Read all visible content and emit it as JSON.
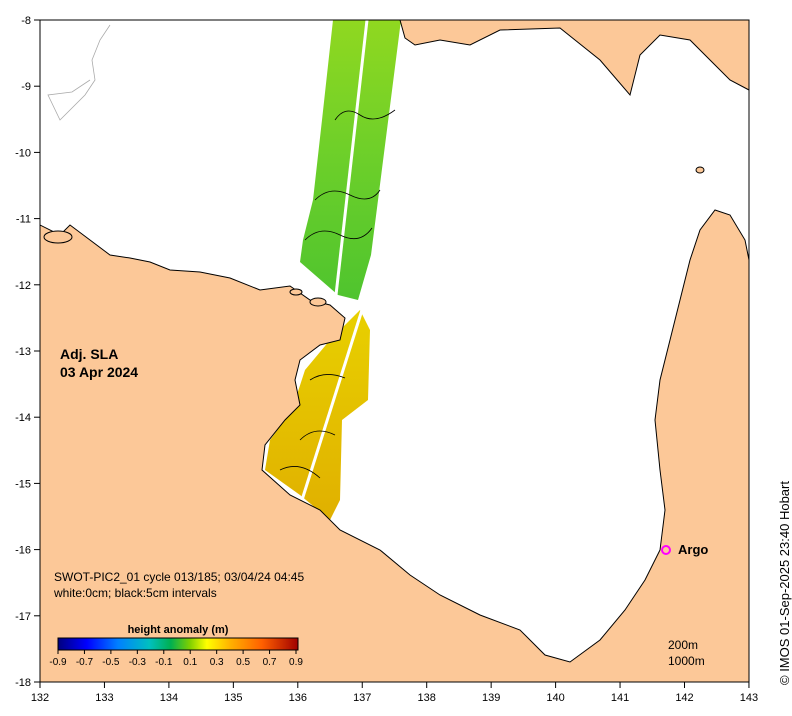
{
  "map": {
    "lon_ticks": [
      "132",
      "133",
      "134",
      "135",
      "136",
      "137",
      "138",
      "139",
      "140",
      "141",
      "142",
      "143"
    ],
    "lat_ticks": [
      "-8",
      "-9",
      "-10",
      "-11",
      "-12",
      "-13",
      "-14",
      "-15",
      "-16",
      "-17",
      "-18"
    ],
    "colors": {
      "land": "#fcc898",
      "ocean": "#ffffff",
      "coast": "#000000",
      "swath_north": "#7ed321",
      "swath_south": "#e6c300"
    }
  },
  "title": {
    "line1": "Adj. SLA",
    "line2": "03 Apr 2024"
  },
  "info": {
    "line1": "SWOT-PIC2_01 cycle 013/185; 03/04/24 04:45",
    "line2": "white:0cm; black:5cm intervals"
  },
  "colorbar": {
    "label": "height anomaly (m)",
    "ticks": [
      "-0.9",
      "-0.7",
      "-0.5",
      "-0.3",
      "-0.1",
      "0.1",
      "0.3",
      "0.5",
      "0.7",
      "0.9"
    ],
    "colors": [
      "#00007f",
      "#0000ff",
      "#007fff",
      "#00bfbf",
      "#00b050",
      "#7fcf00",
      "#ffff00",
      "#ffa500",
      "#ff6000",
      "#a00000"
    ]
  },
  "argo": {
    "label": "Argo",
    "marker_color": "#ff00ff"
  },
  "contours": {
    "line1": "200m",
    "line2": "1000m"
  },
  "credit": "© IMOS 01-Sep-2025 23:40 Hobart"
}
